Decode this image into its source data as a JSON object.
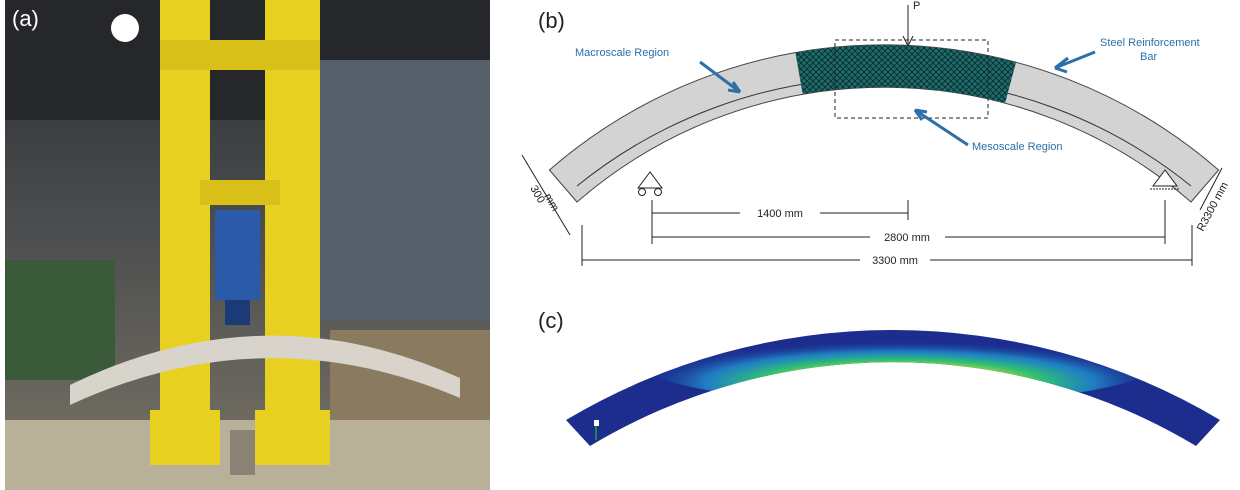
{
  "panel_a": {
    "label": "(a)"
  },
  "panel_b": {
    "label": "(b)",
    "load": "P",
    "macroscale": "Macroscale Region",
    "steel": [
      "Steel Reinforcement",
      "Bar"
    ],
    "mesoscale": "Mesoscale Region",
    "depth": [
      "300",
      "mm"
    ],
    "dim_1": "1400 mm",
    "dim_2": "2800 mm",
    "dim_3": "3300 mm",
    "radius": "R3300 mm"
  },
  "panel_c": {
    "label": "(c)"
  }
}
